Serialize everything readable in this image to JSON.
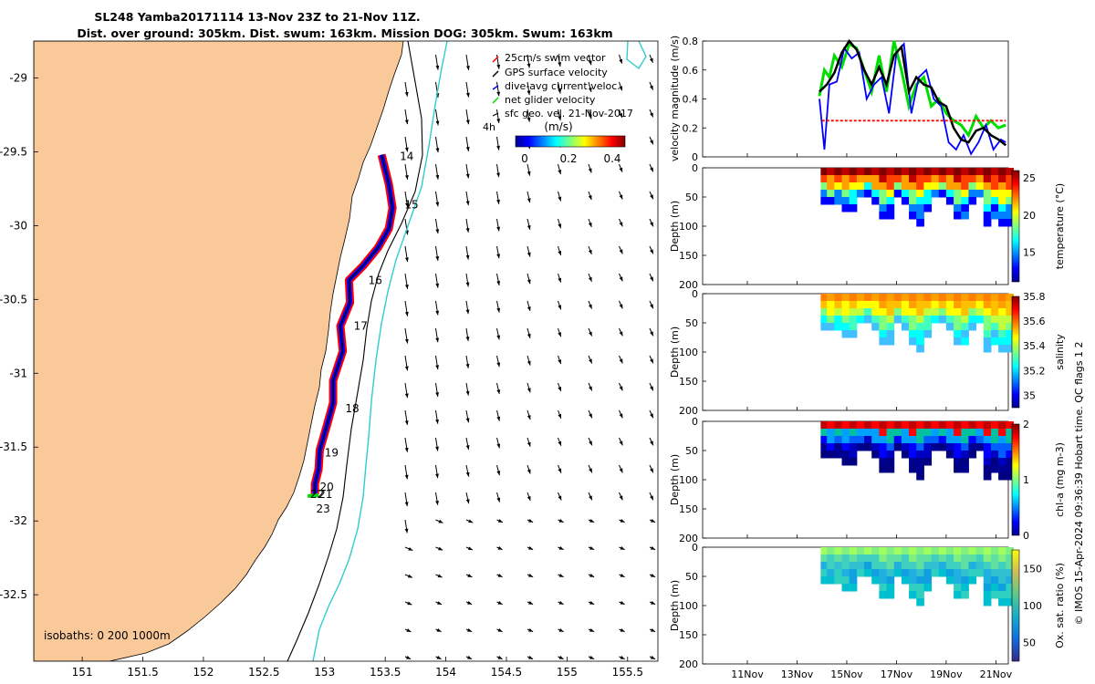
{
  "title": {
    "line1": "SL248 Yamba20171114 13-Nov 23Z to 21-Nov 11Z.",
    "line2": "Dist. over ground: 305km. Dist. swum: 163km. Mission DOG: 305km. Swum: 163km"
  },
  "credit": "© IMOS 15-Apr-2024 09:36:39 Hobart time. QC flags 1  2",
  "colors": {
    "land": "#f9c99a",
    "track": "#ff0000",
    "dac": "#0000ff",
    "net": "#00dd00",
    "sfc": "#000000",
    "iso200": "#000000",
    "iso1000": "#33cccc"
  },
  "chart_data": [
    {
      "type": "map",
      "xlim": [
        150.6,
        155.75
      ],
      "ylim": [
        -32.95,
        -28.75
      ],
      "x_ticks": [
        "151",
        "151.5",
        "152",
        "152.5",
        "153",
        "153.5",
        "154",
        "154.5",
        "155",
        "155.5"
      ],
      "y_ticks": [
        "-29",
        "-29.5",
        "-30",
        "-30.5",
        "-31",
        "-31.5",
        "-32",
        "-32.5"
      ],
      "legend": [
        {
          "label": "25cm/s swim vector",
          "color": "#ff0000"
        },
        {
          "label": "GPS surface velocity",
          "color": "#000000"
        },
        {
          "label": "dive-avg current veloc.",
          "color": "#0000ff"
        },
        {
          "label": "net glider velocity",
          "color": "#00dd00"
        },
        {
          "label": "sfc geo. vel. 21-Nov-2017",
          "color": "#000000"
        }
      ],
      "scale_label": "4h",
      "colorbar": {
        "label": "(m/s)",
        "ticks": [
          "0",
          "0.2",
          "0.4"
        ],
        "range": [
          0,
          0.5
        ]
      },
      "isobaths_label": "isobaths: 0   200  1000m",
      "track": [
        [
          153.47,
          -29.52
        ],
        [
          153.53,
          -29.72
        ],
        [
          153.56,
          -29.88
        ],
        [
          153.53,
          -30.02
        ],
        [
          153.44,
          -30.15
        ],
        [
          153.32,
          -30.27
        ],
        [
          153.2,
          -30.37
        ],
        [
          153.21,
          -30.52
        ],
        [
          153.13,
          -30.68
        ],
        [
          153.15,
          -30.85
        ],
        [
          153.07,
          -31.05
        ],
        [
          153.07,
          -31.2
        ],
        [
          153.02,
          -31.35
        ],
        [
          152.96,
          -31.52
        ],
        [
          152.95,
          -31.65
        ],
        [
          152.92,
          -31.75
        ],
        [
          152.92,
          -31.82
        ]
      ],
      "day_labels": [
        {
          "text": "14",
          "lon": 153.62,
          "lat": -29.53
        },
        {
          "text": "15",
          "lon": 153.66,
          "lat": -29.86
        },
        {
          "text": "16",
          "lon": 153.36,
          "lat": -30.37
        },
        {
          "text": "17",
          "lon": 153.24,
          "lat": -30.68
        },
        {
          "text": "18",
          "lon": 153.17,
          "lat": -31.24
        },
        {
          "text": "19",
          "lon": 153.0,
          "lat": -31.54
        },
        {
          "text": "20",
          "lon": 152.96,
          "lat": -31.77
        },
        {
          "text": "21",
          "lon": 152.95,
          "lat": -31.82
        },
        {
          "text": "22",
          "lon": 152.88,
          "lat": -31.82
        },
        {
          "text": "23",
          "lon": 152.93,
          "lat": -31.92
        }
      ]
    },
    {
      "type": "line",
      "ylabel": "velocity magnitude (m/s)",
      "ylim": [
        0,
        0.8
      ],
      "y_ticks": [
        "0",
        "0.2",
        "0.4",
        "0.6",
        "0.8"
      ],
      "x_ticks": [
        "11Nov",
        "13Nov",
        "15Nov",
        "17Nov",
        "19Nov",
        "21Nov"
      ],
      "xlim_days": [
        9.2,
        21.5
      ],
      "series": [
        {
          "color": "#00dd00",
          "x": [
            13.9,
            14.1,
            14.3,
            14.5,
            14.8,
            15.1,
            15.4,
            15.7,
            16.0,
            16.3,
            16.6,
            16.9,
            17.2,
            17.5,
            17.8,
            18.1,
            18.4,
            18.7,
            19.0,
            19.3,
            19.6,
            19.9,
            20.2,
            20.5,
            20.8,
            21.1,
            21.4
          ],
          "y": [
            0.42,
            0.6,
            0.55,
            0.7,
            0.62,
            0.78,
            0.75,
            0.6,
            0.45,
            0.7,
            0.45,
            0.8,
            0.6,
            0.35,
            0.5,
            0.55,
            0.35,
            0.4,
            0.3,
            0.25,
            0.22,
            0.15,
            0.28,
            0.2,
            0.25,
            0.2,
            0.22
          ]
        },
        {
          "color": "#0000ff",
          "x": [
            13.9,
            14.1,
            14.3,
            14.6,
            14.9,
            15.2,
            15.5,
            15.8,
            16.1,
            16.4,
            16.7,
            17.0,
            17.3,
            17.6,
            17.9,
            18.2,
            18.5,
            18.8,
            19.1,
            19.4,
            19.7,
            20.0,
            20.3,
            20.6,
            20.9,
            21.2,
            21.4
          ],
          "y": [
            0.4,
            0.05,
            0.5,
            0.52,
            0.75,
            0.68,
            0.72,
            0.4,
            0.5,
            0.55,
            0.3,
            0.72,
            0.78,
            0.3,
            0.55,
            0.6,
            0.4,
            0.35,
            0.1,
            0.05,
            0.15,
            0.02,
            0.1,
            0.22,
            0.05,
            0.12,
            0.1
          ]
        },
        {
          "color": "#000000",
          "x": [
            13.9,
            14.2,
            14.5,
            14.8,
            15.1,
            15.4,
            15.7,
            16.0,
            16.3,
            16.6,
            16.9,
            17.2,
            17.5,
            17.8,
            18.1,
            18.4,
            18.7,
            19.0,
            19.3,
            19.6,
            19.9,
            20.2,
            20.5,
            20.8,
            21.1,
            21.4
          ],
          "y": [
            0.45,
            0.5,
            0.58,
            0.72,
            0.8,
            0.74,
            0.6,
            0.5,
            0.62,
            0.5,
            0.7,
            0.76,
            0.45,
            0.55,
            0.5,
            0.48,
            0.38,
            0.35,
            0.2,
            0.12,
            0.1,
            0.18,
            0.2,
            0.15,
            0.12,
            0.08
          ]
        },
        {
          "color": "#ff0000",
          "dashed": true,
          "x": [
            14.0,
            21.4
          ],
          "y": [
            0.25,
            0.25
          ]
        }
      ]
    },
    {
      "type": "heatmap",
      "ylabel": "Depth (m)",
      "clabel": "temperature (°C)",
      "ylim": [
        0,
        200
      ],
      "y_ticks": [
        "0",
        "50",
        "100",
        "150",
        "200"
      ],
      "c_ticks": [
        "15",
        "20",
        "25"
      ],
      "crange": [
        11,
        26
      ]
    },
    {
      "type": "heatmap",
      "ylabel": "Depth (m)",
      "clabel": "salinity",
      "ylim": [
        0,
        200
      ],
      "y_ticks": [
        "0",
        "50",
        "100",
        "150",
        "200"
      ],
      "c_ticks": [
        "35",
        "35.2",
        "35.4",
        "35.6",
        "35.8"
      ],
      "crange": [
        34.9,
        35.8
      ]
    },
    {
      "type": "heatmap",
      "ylabel": "Depth (m)",
      "clabel": "chl-a (mg m-3)",
      "ylim": [
        0,
        200
      ],
      "y_ticks": [
        "0",
        "50",
        "100",
        "150",
        "200"
      ],
      "c_ticks": [
        "0",
        "1",
        "2"
      ],
      "crange": [
        0,
        2
      ]
    },
    {
      "type": "heatmap",
      "ylabel": "Depth (m)",
      "clabel": "Ox. sat. ratio (%)",
      "ylim": [
        0,
        200
      ],
      "y_ticks": [
        "0",
        "50",
        "100",
        "150",
        "200"
      ],
      "c_ticks": [
        "50",
        "100",
        "150"
      ],
      "crange": [
        25,
        175
      ]
    }
  ]
}
